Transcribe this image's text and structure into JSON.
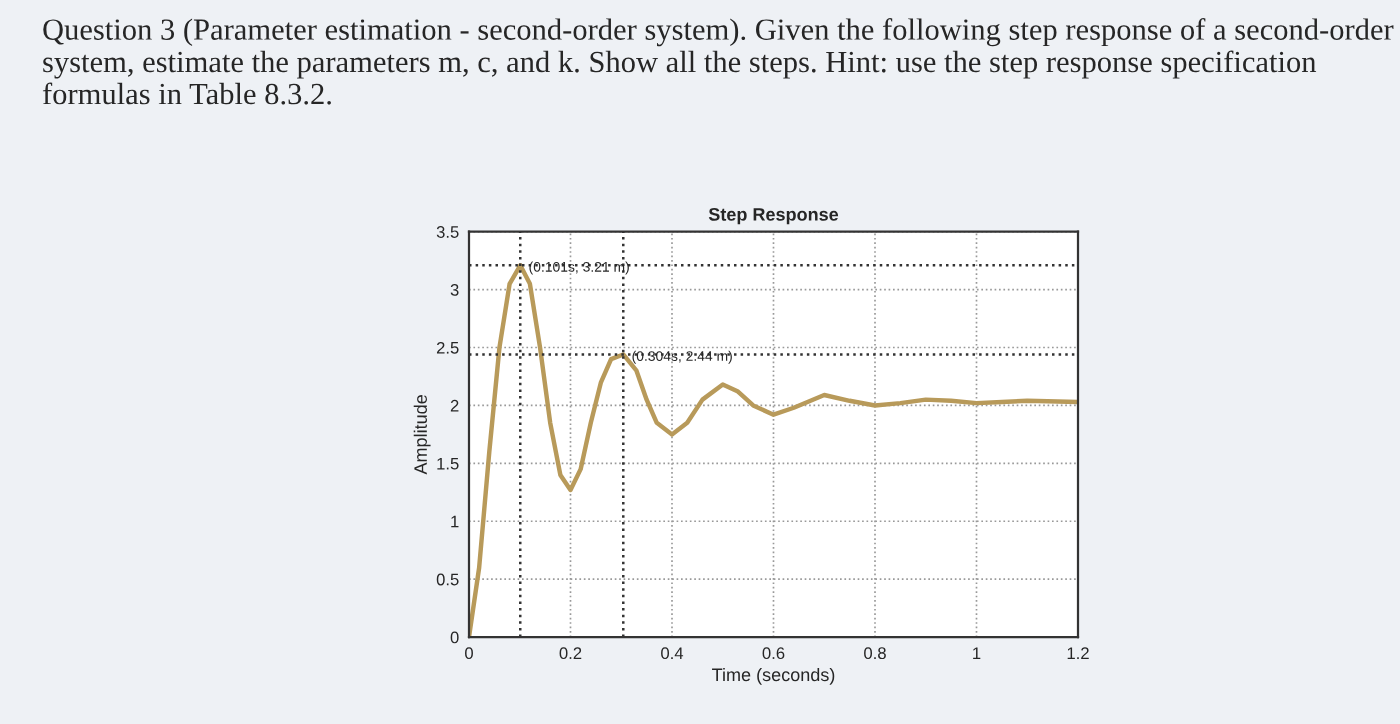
{
  "chart_data": {
    "type": "line",
    "title": "Step Response",
    "xlabel": "Time (seconds)",
    "ylabel": "Amplitude",
    "annotations": [
      "Question 3 (Parameter estimation - second-order system). Given the following step response of a second-order system, estimate the parameters m, c, and k. Show all the steps. Hint: use the step response specification formulas in Table 8.3.2.",
      {
        "text": "(0.101s, 3.21 m)",
        "x": 0.101,
        "y": 3.21
      },
      {
        "text": "(0.304s, 2.44 m)",
        "x": 0.304,
        "y": 2.44
      }
    ],
    "x": [
      0,
      0.02,
      0.04,
      0.06,
      0.08,
      0.101,
      0.12,
      0.14,
      0.16,
      0.18,
      0.2,
      0.22,
      0.24,
      0.26,
      0.28,
      0.304,
      0.33,
      0.35,
      0.37,
      0.4,
      0.43,
      0.46,
      0.5,
      0.53,
      0.56,
      0.6,
      0.64,
      0.7,
      0.75,
      0.8,
      0.85,
      0.9,
      0.95,
      1.0,
      1.05,
      1.1,
      1.2
    ],
    "series": [
      {
        "color": "#b89a5a",
        "values": [
          0,
          0.6,
          1.6,
          2.5,
          3.05,
          3.21,
          3.05,
          2.5,
          1.85,
          1.4,
          1.27,
          1.45,
          1.85,
          2.2,
          2.4,
          2.44,
          2.3,
          2.05,
          1.85,
          1.75,
          1.85,
          2.05,
          2.18,
          2.12,
          2.0,
          1.92,
          1.98,
          2.09,
          2.04,
          2.0,
          2.02,
          2.05,
          2.04,
          2.02,
          2.03,
          2.04,
          2.03
        ]
      }
    ],
    "ref_lines": [
      {
        "axis": "x",
        "value": 0.101,
        "line_style": "dotted",
        "color": "#333333"
      },
      {
        "axis": "x",
        "value": 0.304,
        "line_style": "dotted",
        "color": "#333333"
      },
      {
        "axis": "y",
        "value": 3.21,
        "line_style": "dotted",
        "color": "#333333"
      },
      {
        "axis": "y",
        "value": 2.44,
        "line_style": "dotted",
        "color": "#333333"
      }
    ],
    "xlim": [
      0,
      1.2
    ],
    "xticks": [
      0,
      0.2,
      0.4,
      0.6,
      0.8,
      1,
      1.2
    ],
    "ylim": [
      0,
      3.5
    ],
    "yticks": [
      0,
      0.5,
      1,
      1.5,
      2,
      2.5,
      3,
      3.5
    ],
    "grid": true,
    "legend": false,
    "marker": "none",
    "line_style": "solid"
  }
}
